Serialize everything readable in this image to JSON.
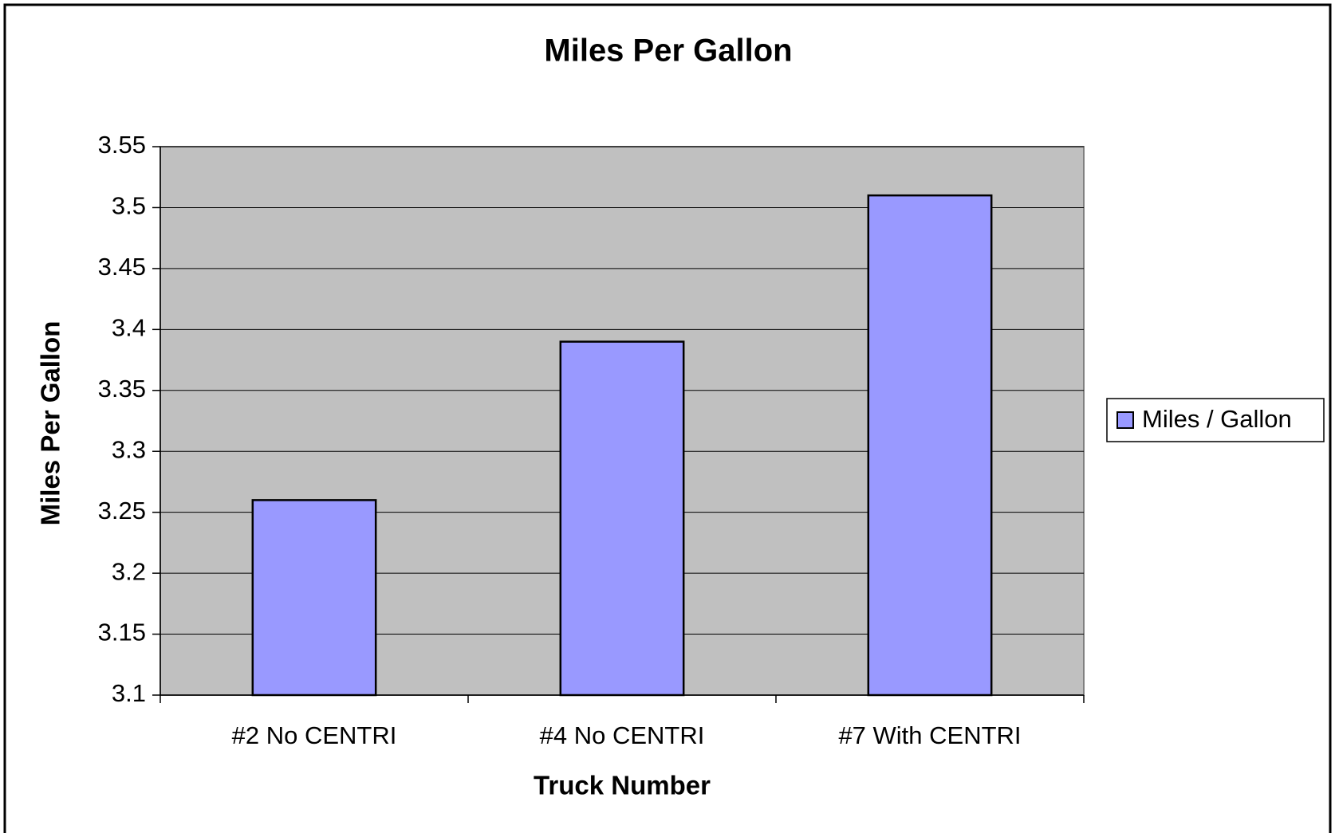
{
  "chart_data": {
    "type": "bar",
    "title": "Miles Per Gallon",
    "x_label": "Truck Number",
    "y_label": "Miles Per Gallon",
    "categories": [
      "#2 No CENTRI",
      "#4 No CENTRI",
      "#7 With CENTRI"
    ],
    "series": [
      {
        "name": "Miles / Gallon",
        "color": "#9999ff",
        "values": [
          3.26,
          3.39,
          3.51
        ]
      }
    ],
    "ylim": [
      3.1,
      3.55
    ],
    "yticks": [
      3.1,
      3.15,
      3.2,
      3.25,
      3.3,
      3.35,
      3.4,
      3.45,
      3.5,
      3.55
    ],
    "grid": true,
    "legend": "right"
  }
}
